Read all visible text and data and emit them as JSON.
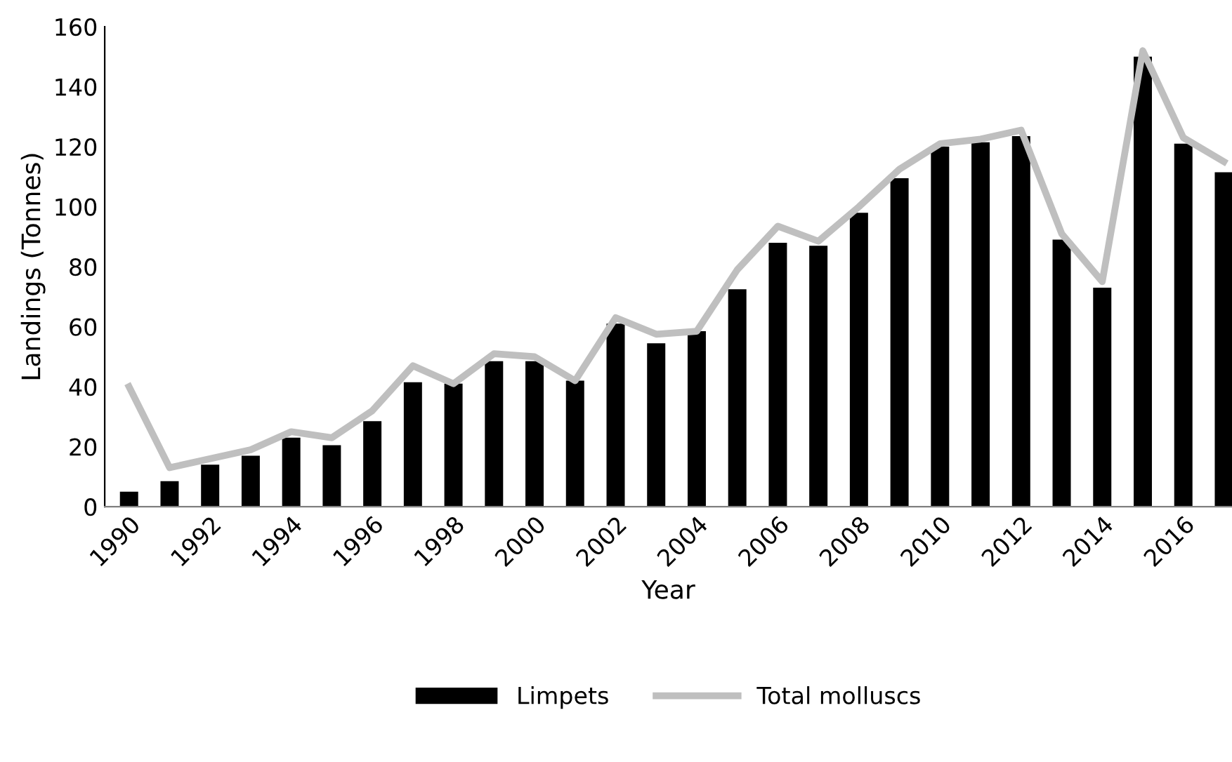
{
  "chart_data": {
    "type": "bar",
    "xlabel": "Year",
    "ylabel": "Landings (Tonnes)",
    "categories": [
      "1990",
      null,
      "1992",
      null,
      "1994",
      null,
      "1996",
      null,
      "1998",
      null,
      "2000",
      null,
      "2002",
      null,
      "2004",
      null,
      "2006",
      null,
      "2008",
      null,
      "2010",
      null,
      "2012",
      null,
      "2014",
      null,
      "2016",
      null
    ],
    "series": [
      {
        "name": "Limpets",
        "color": "#000000",
        "values": [
          5,
          8.5,
          14,
          17,
          23,
          20.5,
          28.5,
          41.5,
          41,
          48.5,
          48.5,
          42,
          61,
          54.5,
          58.5,
          72.5,
          88,
          87,
          98,
          109.5,
          120,
          121.5,
          123.5,
          89,
          73,
          150,
          121,
          111.5
        ]
      },
      {
        "name": "Total molluscs",
        "type": "line",
        "color": "#bfbfbf",
        "values": [
          40,
          13,
          16,
          19,
          25,
          23,
          32,
          47,
          41,
          51,
          50,
          42,
          63,
          57.5,
          58.5,
          79,
          93.5,
          88.5,
          100,
          112.5,
          121,
          122.5,
          125.5,
          91,
          75,
          152,
          123,
          115
        ]
      }
    ],
    "ylim": [
      0,
      160
    ],
    "yticks": [
      0,
      20,
      40,
      60,
      80,
      100,
      120,
      140,
      160
    ],
    "grid": false,
    "legend": "bottom",
    "marker": "none",
    "line_style": "solid"
  }
}
